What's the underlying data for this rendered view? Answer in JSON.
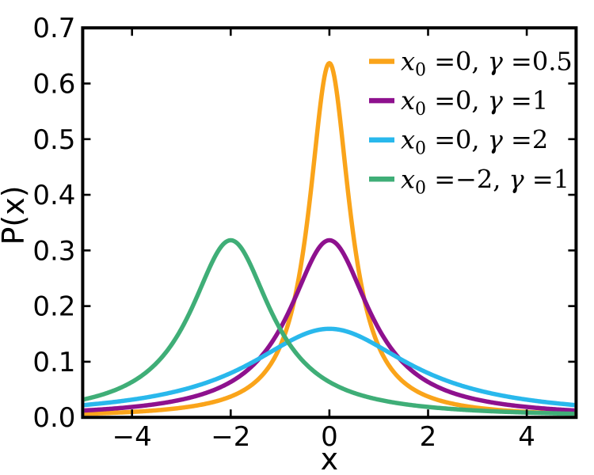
{
  "figure": {
    "background_color": "#ffffff",
    "axes_color": "#000000"
  },
  "chart_data": {
    "type": "line",
    "title": "",
    "xlabel": "x",
    "ylabel": "P(x)",
    "xlim": [
      -5,
      5
    ],
    "ylim": [
      0,
      0.7
    ],
    "x_tick_values": [
      -4,
      -2,
      0,
      2,
      4
    ],
    "x_tick_labels": [
      "−4",
      "−2",
      "0",
      "2",
      "4"
    ],
    "y_tick_values": [
      0.0,
      0.1,
      0.2,
      0.3,
      0.4,
      0.5,
      0.6,
      0.7
    ],
    "y_tick_labels": [
      "0.0",
      "0.1",
      "0.2",
      "0.3",
      "0.4",
      "0.5",
      "0.6",
      "0.7"
    ],
    "grid": false,
    "legend_position": "upper-right",
    "curve_type": "cauchy_pdf",
    "series": [
      {
        "name": "x₀ =0, γ =0.5",
        "x0": 0,
        "gamma": 0.5,
        "color": "#FAA41A",
        "peak_x": 0,
        "peak_y": 0.637
      },
      {
        "name": "x₀ =0, γ =1",
        "x0": 0,
        "gamma": 1,
        "color": "#8E118E",
        "peak_x": 0,
        "peak_y": 0.318
      },
      {
        "name": "x₀ =0, γ =2",
        "x0": 0,
        "gamma": 2,
        "color": "#29B8EC",
        "peak_x": 0,
        "peak_y": 0.159
      },
      {
        "name": "x₀ =−2, γ =1",
        "x0": -2,
        "gamma": 1,
        "color": "#3FAE77",
        "peak_x": -2,
        "peak_y": 0.318
      }
    ]
  },
  "legend": {
    "var_symbol": "x",
    "var_subscript": "0",
    "gamma_symbol": "γ",
    "rows": [
      {
        "x0_display": "0",
        "gamma_display": "0.5"
      },
      {
        "x0_display": "0",
        "gamma_display": "1"
      },
      {
        "x0_display": "0",
        "gamma_display": "2"
      },
      {
        "x0_display": "−2",
        "gamma_display": "1"
      }
    ]
  }
}
